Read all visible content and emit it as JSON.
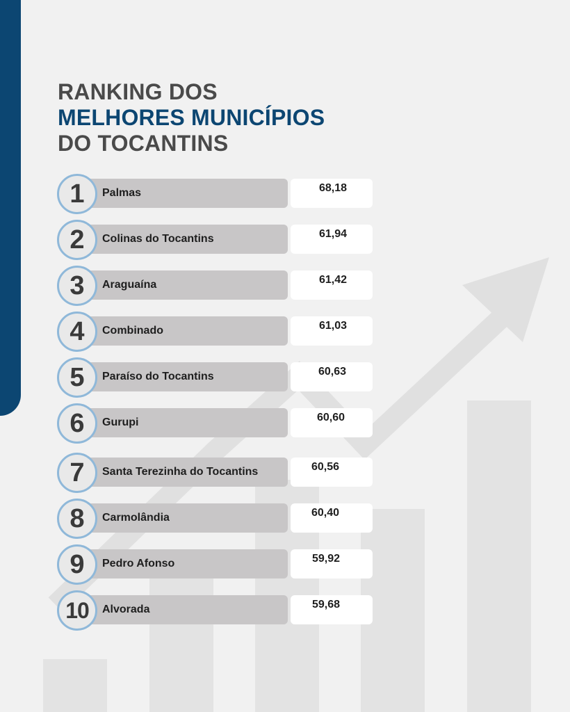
{
  "title": {
    "line1": "RANKING DOS",
    "line2": "MELHORES MUNICÍPIOS",
    "line3": "DO TOCANTINS"
  },
  "ranking": [
    {
      "rank": "1",
      "name": "Palmas",
      "score": "68,18"
    },
    {
      "rank": "2",
      "name": "Colinas do Tocantins",
      "score": "61,94"
    },
    {
      "rank": "3",
      "name": "Araguaína",
      "score": "61,42"
    },
    {
      "rank": "4",
      "name": "Combinado",
      "score": "61,03"
    },
    {
      "rank": "5",
      "name": "Paraíso do Tocantins",
      "score": "60,63"
    },
    {
      "rank": "6",
      "name": "Gurupi",
      "score": "60,60"
    },
    {
      "rank": "7",
      "name": "Santa Terezinha do Tocantins",
      "score": "60,56"
    },
    {
      "rank": "8",
      "name": "Carmolândia",
      "score": "60,40"
    },
    {
      "rank": "9",
      "name": "Pedro Afonso",
      "score": "59,92"
    },
    {
      "rank": "10",
      "name": "Alvorada",
      "score": "59,68"
    }
  ],
  "colors": {
    "brand_blue": "#0c4672",
    "title_gray": "#4a4a4a",
    "pill_gray": "#c8c6c7",
    "badge_ring": "#8fb8d9"
  },
  "icons": {
    "background": "growth-bar-chart-arrow-icon"
  }
}
